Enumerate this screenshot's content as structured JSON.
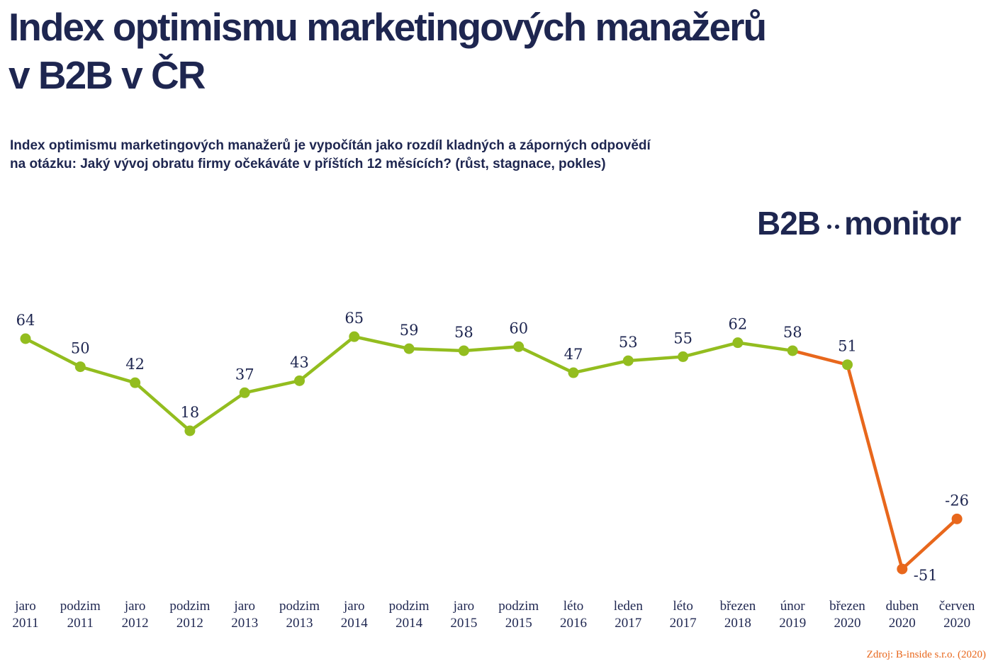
{
  "header": {
    "title_line1": "Index optimismu marketingových manažerů",
    "title_line2": "v B2B v ČR",
    "subtitle_line1": "Index optimismu marketingových manažerů je vypočítán jako rozdíl kladných a záporných odpovědí",
    "subtitle_line2": "na otázku: Jaký vývoj obratu firmy očekáváte v příštích 12 měsících? (růst, stagnace, pokles)"
  },
  "logo": {
    "part1": "B2B",
    "part2": "monitor"
  },
  "source": "Zdroj: B-inside s.r.o. (2020)",
  "colors": {
    "text": "#1e2650",
    "series_main": "#93bd1f",
    "series_drop": "#e8671c"
  },
  "chart_data": {
    "type": "line",
    "title": "Index optimismu marketingových manažerů v B2B v ČR",
    "categories": [
      [
        "jaro",
        "2011"
      ],
      [
        "podzim",
        "2011"
      ],
      [
        "jaro",
        "2012"
      ],
      [
        "podzim",
        "2012"
      ],
      [
        "jaro",
        "2013"
      ],
      [
        "podzim",
        "2013"
      ],
      [
        "jaro",
        "2014"
      ],
      [
        "podzim",
        "2014"
      ],
      [
        "jaro",
        "2015"
      ],
      [
        "podzim",
        "2015"
      ],
      [
        "léto",
        "2016"
      ],
      [
        "leden",
        "2017"
      ],
      [
        "léto",
        "2017"
      ],
      [
        "březen",
        "2018"
      ],
      [
        "únor",
        "2019"
      ],
      [
        "březen",
        "2020"
      ],
      [
        "duben",
        "2020"
      ],
      [
        "červen",
        "2020"
      ]
    ],
    "values": [
      64,
      50,
      42,
      18,
      37,
      43,
      65,
      59,
      58,
      60,
      47,
      53,
      55,
      62,
      58,
      51,
      -51,
      -26
    ],
    "highlight_from_index": 15,
    "value_labels": [
      "64",
      "50",
      "42",
      "18",
      "37",
      "43",
      "65",
      "59",
      "58",
      "60",
      "47",
      "53",
      "55",
      "62",
      "58",
      "51",
      "-51",
      "-26"
    ],
    "grid": false,
    "legend": "none",
    "axes_visible": false
  }
}
